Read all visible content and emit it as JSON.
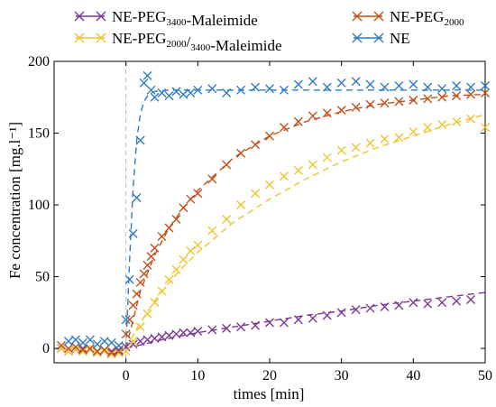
{
  "chart_data": {
    "type": "scatter",
    "xlabel": "times [min]",
    "ylabel": "Fe concentration [mg.l⁻¹]",
    "xlim": [
      -10,
      50
    ],
    "ylim": [
      -10,
      200
    ],
    "xticks": [
      0,
      10,
      20,
      30,
      40,
      50
    ],
    "yticks": [
      0,
      50,
      100,
      150,
      200
    ],
    "marker": "x",
    "fit_line_style": "dashed",
    "vertical_reference_line_x": 0,
    "legend": {
      "placement": "top",
      "columns": 2
    },
    "series": [
      {
        "name": "NE-PEG3400-Maleimide",
        "label_parts": [
          [
            "NE-PEG",
            "n"
          ],
          [
            "3400",
            "sub"
          ],
          [
            "-Maleimide",
            "n"
          ]
        ],
        "color": "#7b3a96",
        "legend_pos": 0,
        "x": [
          -9,
          -8,
          -7,
          -6,
          -5,
          -4,
          -3,
          -2,
          -1,
          0,
          1,
          2,
          3,
          4,
          5,
          6,
          7,
          8,
          9,
          10,
          12,
          14,
          16,
          18,
          20,
          22,
          24,
          26,
          28,
          30,
          32,
          34,
          36,
          38,
          40,
          42,
          44,
          46,
          48
        ],
        "y": [
          0,
          -2,
          -1,
          0,
          -1,
          -2,
          -1,
          -2,
          -1,
          1,
          3,
          5,
          6,
          7,
          8,
          9,
          10,
          11,
          11,
          12,
          13,
          14,
          15,
          16,
          18,
          18,
          20,
          21,
          23,
          25,
          27,
          28,
          29,
          30,
          32,
          31,
          32,
          33,
          34
        ],
        "fit_x": [
          0,
          5,
          10,
          15,
          20,
          25,
          30,
          35,
          40,
          45,
          50
        ],
        "fit_y": [
          0,
          6,
          11,
          15,
          19,
          23,
          26,
          30,
          33,
          36,
          39
        ]
      },
      {
        "name": "NE-PEG2000/3400-Maleimide",
        "label_parts": [
          [
            "NE-PEG",
            "n"
          ],
          [
            "2000",
            "sub"
          ],
          [
            "/",
            "n"
          ],
          [
            "3400",
            "sub"
          ],
          [
            "-Maleimide",
            "n"
          ]
        ],
        "color": "#f2c230",
        "legend_pos": 1,
        "x": [
          -9,
          -8,
          -7,
          -6,
          -5,
          -4,
          -3,
          -2,
          -1,
          0,
          1,
          2,
          3,
          4,
          5,
          6,
          7,
          8,
          9,
          10,
          12,
          14,
          16,
          18,
          20,
          22,
          24,
          26,
          28,
          30,
          32,
          34,
          36,
          38,
          40,
          42,
          44,
          46,
          48,
          50
        ],
        "y": [
          0,
          -2,
          -1,
          -2,
          -1,
          -3,
          -2,
          -4,
          -3,
          -2,
          5,
          15,
          24,
          32,
          40,
          48,
          55,
          62,
          68,
          72,
          82,
          90,
          100,
          108,
          114,
          120,
          124,
          128,
          133,
          138,
          140,
          143,
          146,
          147,
          151,
          154,
          156,
          158,
          160,
          154
        ],
        "fit_x": [
          0,
          2,
          4,
          6,
          8,
          10,
          15,
          20,
          25,
          30,
          35,
          40,
          45,
          50
        ],
        "fit_y": [
          0,
          18,
          33,
          46,
          57,
          67,
          88,
          104,
          118,
          130,
          140,
          148,
          156,
          163
        ]
      },
      {
        "name": "NE-PEG2000",
        "label_parts": [
          [
            "NE-PEG",
            "n"
          ],
          [
            "2000",
            "sub"
          ]
        ],
        "color": "#c0501a",
        "legend_pos": 2,
        "x": [
          -9,
          -8,
          -7,
          -6,
          -5,
          -4,
          -3,
          -2,
          -1,
          0,
          0.5,
          1,
          1.5,
          2,
          2.5,
          3,
          3.5,
          4,
          5,
          6,
          7,
          8,
          9,
          10,
          12,
          14,
          16,
          18,
          20,
          22,
          24,
          26,
          28,
          30,
          32,
          34,
          36,
          38,
          40,
          42,
          44,
          46,
          48,
          50
        ],
        "y": [
          2,
          0,
          1,
          -1,
          0,
          -2,
          -1,
          -3,
          -2,
          10,
          20,
          30,
          38,
          46,
          52,
          58,
          64,
          70,
          78,
          84,
          90,
          98,
          104,
          108,
          118,
          128,
          136,
          142,
          148,
          154,
          158,
          162,
          164,
          166,
          168,
          170,
          171,
          172,
          173,
          174,
          175,
          176,
          177,
          178
        ],
        "fit_x": [
          0,
          2,
          4,
          6,
          8,
          10,
          15,
          20,
          25,
          30,
          35,
          40,
          45,
          50
        ],
        "fit_y": [
          0,
          40,
          65,
          84,
          98,
          110,
          133,
          148,
          158,
          165,
          170,
          173,
          176,
          177
        ]
      },
      {
        "name": "NE",
        "label_parts": [
          [
            "NE",
            "n"
          ]
        ],
        "color": "#2f7cc4",
        "legend_pos": 3,
        "x": [
          -8,
          -7,
          -6,
          -5,
          -4,
          -3,
          -2,
          -1,
          0,
          0.5,
          1,
          1.5,
          2,
          2.5,
          3,
          3.5,
          4,
          5,
          6,
          7,
          8,
          9,
          10,
          12,
          14,
          16,
          18,
          20,
          22,
          24,
          26,
          28,
          30,
          32,
          34,
          36,
          38,
          40,
          42,
          44,
          46,
          48,
          50
        ],
        "y": [
          5,
          6,
          4,
          6,
          3,
          5,
          4,
          2,
          20,
          48,
          80,
          105,
          145,
          185,
          190,
          180,
          175,
          178,
          176,
          179,
          177,
          178,
          180,
          181,
          178,
          180,
          182,
          181,
          180,
          184,
          186,
          182,
          185,
          186,
          184,
          182,
          183,
          184,
          182,
          181,
          183,
          182,
          183
        ],
        "fit_x": [
          0,
          0.5,
          1,
          1.5,
          2,
          2.5,
          3,
          3.5,
          4,
          6,
          10,
          20,
          30,
          40,
          50
        ],
        "fit_y": [
          0,
          60,
          112,
          145,
          163,
          172,
          176,
          178,
          179,
          180,
          180,
          180,
          180,
          180,
          180
        ]
      }
    ]
  }
}
